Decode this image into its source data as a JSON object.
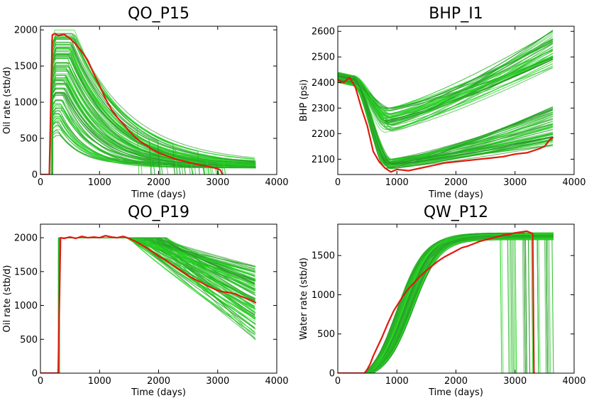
{
  "colors": {
    "observed": "#e01a10",
    "ensemble_bright": "#22e81e",
    "ensemble_dark": "#2e8a2e"
  },
  "chart_data": [
    {
      "id": "qo_p15",
      "type": "line",
      "title": "QO_P15",
      "xlabel": "Time (days)",
      "ylabel": "Oil rate (stb/d)",
      "xlim": [
        0,
        4000
      ],
      "ylim": [
        0,
        2050
      ],
      "xticks": [
        0,
        1000,
        2000,
        3000,
        4000
      ],
      "yticks": [
        0,
        500,
        1000,
        1500,
        2000
      ],
      "ensemble": {
        "members": 100,
        "x_end": 3650,
        "color_range": [
          "#2e8a2e",
          "#22e81e"
        ]
      },
      "observed": {
        "name": "observed",
        "x": [
          0,
          150,
          200,
          250,
          300,
          400,
          500,
          600,
          700,
          800,
          900,
          1000,
          1100,
          1200,
          1300,
          1400,
          1500,
          1600,
          1700,
          1800,
          1900,
          2000,
          2100,
          2200,
          2300,
          2400,
          2500,
          2600,
          2700,
          2800,
          2900,
          3000,
          3050,
          3080
        ],
        "y": [
          0,
          0,
          1930,
          1950,
          1920,
          1940,
          1880,
          1800,
          1700,
          1580,
          1400,
          1230,
          1050,
          900,
          790,
          700,
          600,
          520,
          450,
          400,
          340,
          300,
          270,
          240,
          210,
          190,
          170,
          150,
          130,
          120,
          100,
          80,
          60,
          0
        ]
      }
    },
    {
      "id": "bhp_i1",
      "type": "line",
      "title": "BHP_I1",
      "xlabel": "Time (days)",
      "ylabel": "BHP (psi)",
      "xlim": [
        0,
        4000
      ],
      "ylim": [
        2040,
        2620
      ],
      "xticks": [
        0,
        1000,
        2000,
        3000,
        4000
      ],
      "yticks": [
        2100,
        2200,
        2300,
        2400,
        2500,
        2600
      ],
      "ensemble": {
        "members": 100,
        "x_end": 3650,
        "color_range": [
          "#2e8a2e",
          "#22e81e"
        ]
      },
      "observed": {
        "name": "observed",
        "x": [
          0,
          100,
          200,
          300,
          400,
          500,
          600,
          700,
          800,
          900,
          1000,
          1200,
          1400,
          1600,
          1800,
          2000,
          2200,
          2400,
          2600,
          2800,
          3000,
          3200,
          3400,
          3500,
          3600,
          3650
        ],
        "y": [
          2410,
          2400,
          2420,
          2380,
          2300,
          2230,
          2130,
          2090,
          2065,
          2050,
          2060,
          2055,
          2065,
          2075,
          2085,
          2090,
          2095,
          2100,
          2105,
          2110,
          2120,
          2125,
          2140,
          2150,
          2180,
          2185
        ]
      }
    },
    {
      "id": "qo_p19",
      "type": "line",
      "title": "QO_P19",
      "xlabel": "Time (days)",
      "ylabel": "Oil rate (stb/d)",
      "xlim": [
        0,
        4000
      ],
      "ylim": [
        0,
        2200
      ],
      "xticks": [
        0,
        1000,
        2000,
        3000,
        4000
      ],
      "yticks": [
        0,
        500,
        1000,
        1500,
        2000
      ],
      "ensemble": {
        "members": 100,
        "x_end": 3650,
        "color_range": [
          "#2e8a2e",
          "#22e81e"
        ]
      },
      "observed": {
        "name": "observed",
        "x": [
          0,
          300,
          340,
          400,
          500,
          600,
          700,
          800,
          900,
          1000,
          1100,
          1200,
          1300,
          1400,
          1500,
          1600,
          1700,
          1800,
          1900,
          2000,
          2100,
          2200,
          2300,
          2400,
          2500,
          2600,
          2700,
          2800,
          2900,
          3000,
          3100,
          3200,
          3300,
          3400,
          3500,
          3600,
          3650
        ],
        "y": [
          0,
          0,
          2000,
          1990,
          2010,
          1990,
          2020,
          2000,
          2010,
          2000,
          2030,
          2010,
          2000,
          2020,
          1990,
          1950,
          1900,
          1850,
          1790,
          1730,
          1680,
          1620,
          1560,
          1500,
          1440,
          1390,
          1350,
          1300,
          1260,
          1220,
          1200,
          1190,
          1170,
          1130,
          1100,
          1060,
          1040
        ]
      }
    },
    {
      "id": "qw_p12",
      "type": "line",
      "title": "QW_P12",
      "xlabel": "Time (days)",
      "ylabel": "Water rate (stb/d)",
      "xlim": [
        0,
        4000
      ],
      "ylim": [
        0,
        1900
      ],
      "xticks": [
        0,
        1000,
        2000,
        3000,
        4000
      ],
      "yticks": [
        0,
        500,
        1000,
        1500
      ],
      "ensemble": {
        "members": 100,
        "x_end": 3650,
        "color_range": [
          "#2e8a2e",
          "#22e81e"
        ]
      },
      "observed": {
        "name": "observed",
        "x": [
          0,
          450,
          500,
          550,
          600,
          650,
          700,
          750,
          800,
          850,
          900,
          950,
          1000,
          1100,
          1200,
          1300,
          1400,
          1500,
          1600,
          1700,
          1800,
          1900,
          2000,
          2100,
          2200,
          2300,
          2400,
          2500,
          2600,
          2700,
          2800,
          2900,
          3000,
          3100,
          3200,
          3300,
          3320,
          3340
        ],
        "y": [
          0,
          0,
          50,
          120,
          220,
          300,
          380,
          460,
          550,
          640,
          720,
          800,
          860,
          980,
          1080,
          1160,
          1240,
          1310,
          1370,
          1430,
          1480,
          1520,
          1560,
          1600,
          1620,
          1650,
          1680,
          1700,
          1720,
          1740,
          1760,
          1770,
          1790,
          1800,
          1810,
          1780,
          0,
          0
        ]
      }
    }
  ]
}
